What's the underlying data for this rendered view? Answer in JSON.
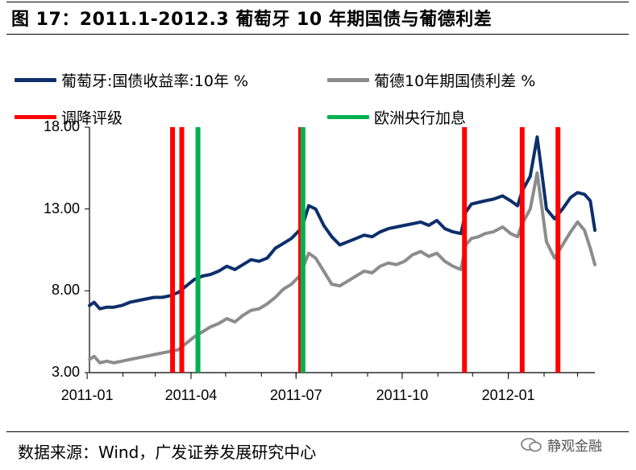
{
  "title": "图 17：2011.1-2012.3 葡萄牙 10 年期国债与葡德利差",
  "source": "数据来源：Wind，广发证券发展研究中心",
  "watermark": "静观金融",
  "colors": {
    "yield": "#0d2f6b",
    "spread": "#8c8c8c",
    "downgrade": "#ff0000",
    "ecb": "#00b050"
  },
  "chart_data": {
    "type": "line",
    "ylim": [
      3,
      18
    ],
    "yticks": [
      "3.00",
      "8.00",
      "13.00",
      "18.00"
    ],
    "xticks": [
      "2011-01",
      "2011-04",
      "2011-07",
      "2011-10",
      "2012-01"
    ],
    "x_range": [
      "2011-01-03",
      "2012-03-16"
    ],
    "series": [
      {
        "name": "葡萄牙:国债收益率:10年 %",
        "x": [
          "2011-01-03",
          "2011-01-07",
          "2011-01-12",
          "2011-01-18",
          "2011-01-24",
          "2011-01-31",
          "2011-02-07",
          "2011-02-14",
          "2011-02-21",
          "2011-02-28",
          "2011-03-07",
          "2011-03-14",
          "2011-03-21",
          "2011-03-28",
          "2011-04-04",
          "2011-04-11",
          "2011-04-18",
          "2011-04-25",
          "2011-05-02",
          "2011-05-09",
          "2011-05-16",
          "2011-05-23",
          "2011-05-30",
          "2011-06-06",
          "2011-06-13",
          "2011-06-20",
          "2011-06-27",
          "2011-07-04",
          "2011-07-08",
          "2011-07-12",
          "2011-07-18",
          "2011-07-25",
          "2011-08-01",
          "2011-08-08",
          "2011-08-15",
          "2011-08-22",
          "2011-08-29",
          "2011-09-05",
          "2011-09-12",
          "2011-09-19",
          "2011-09-26",
          "2011-10-03",
          "2011-10-10",
          "2011-10-17",
          "2011-10-24",
          "2011-10-31",
          "2011-11-07",
          "2011-11-14",
          "2011-11-21",
          "2011-11-25",
          "2011-11-30",
          "2011-12-06",
          "2011-12-12",
          "2011-12-19",
          "2011-12-27",
          "2012-01-03",
          "2012-01-09",
          "2012-01-13",
          "2012-01-20",
          "2012-01-26",
          "2012-01-30",
          "2012-02-03",
          "2012-02-10",
          "2012-02-17",
          "2012-02-24",
          "2012-03-01",
          "2012-03-07",
          "2012-03-12",
          "2012-03-16"
        ],
        "values": [
          7.1,
          7.3,
          6.9,
          7.0,
          7.0,
          7.1,
          7.3,
          7.4,
          7.5,
          7.6,
          7.6,
          7.7,
          7.9,
          8.3,
          8.7,
          8.9,
          9.0,
          9.2,
          9.5,
          9.3,
          9.6,
          9.9,
          9.8,
          10.0,
          10.6,
          10.9,
          11.2,
          11.7,
          12.3,
          13.2,
          13.0,
          12.0,
          11.3,
          10.8,
          11.0,
          11.2,
          11.4,
          11.3,
          11.6,
          11.8,
          11.9,
          12.0,
          12.1,
          12.2,
          12.0,
          12.3,
          11.8,
          11.6,
          11.5,
          12.8,
          13.3,
          13.4,
          13.5,
          13.6,
          13.8,
          13.5,
          13.2,
          14.1,
          15.0,
          17.4,
          15.2,
          13.0,
          12.4,
          13.0,
          13.7,
          14.0,
          13.9,
          13.5,
          11.7
        ]
      },
      {
        "name": "葡德10年期国债利差 %",
        "x": [
          "2011-01-03",
          "2011-01-07",
          "2011-01-12",
          "2011-01-18",
          "2011-01-24",
          "2011-01-31",
          "2011-02-07",
          "2011-02-14",
          "2011-02-21",
          "2011-02-28",
          "2011-03-07",
          "2011-03-14",
          "2011-03-21",
          "2011-03-28",
          "2011-04-04",
          "2011-04-11",
          "2011-04-18",
          "2011-04-25",
          "2011-05-02",
          "2011-05-09",
          "2011-05-16",
          "2011-05-23",
          "2011-05-30",
          "2011-06-06",
          "2011-06-13",
          "2011-06-20",
          "2011-06-27",
          "2011-07-04",
          "2011-07-08",
          "2011-07-12",
          "2011-07-18",
          "2011-07-25",
          "2011-08-01",
          "2011-08-08",
          "2011-08-15",
          "2011-08-22",
          "2011-08-29",
          "2011-09-05",
          "2011-09-12",
          "2011-09-19",
          "2011-09-26",
          "2011-10-03",
          "2011-10-10",
          "2011-10-17",
          "2011-10-24",
          "2011-10-31",
          "2011-11-07",
          "2011-11-14",
          "2011-11-21",
          "2011-11-25",
          "2011-11-30",
          "2011-12-06",
          "2011-12-12",
          "2011-12-19",
          "2011-12-27",
          "2012-01-03",
          "2012-01-09",
          "2012-01-13",
          "2012-01-20",
          "2012-01-26",
          "2012-01-30",
          "2012-02-03",
          "2012-02-10",
          "2012-02-17",
          "2012-02-24",
          "2012-03-01",
          "2012-03-07",
          "2012-03-12",
          "2012-03-16"
        ],
        "values": [
          3.8,
          4.0,
          3.6,
          3.7,
          3.6,
          3.7,
          3.8,
          3.9,
          4.0,
          4.1,
          4.2,
          4.3,
          4.4,
          4.8,
          5.2,
          5.5,
          5.8,
          6.0,
          6.3,
          6.1,
          6.5,
          6.8,
          6.9,
          7.2,
          7.6,
          8.1,
          8.4,
          8.9,
          9.6,
          10.3,
          10.0,
          9.2,
          8.4,
          8.3,
          8.6,
          8.9,
          9.2,
          9.1,
          9.5,
          9.7,
          9.6,
          9.8,
          10.2,
          10.4,
          10.1,
          10.3,
          9.8,
          9.5,
          9.3,
          10.8,
          11.2,
          11.3,
          11.5,
          11.6,
          11.9,
          11.5,
          11.3,
          12.1,
          13.0,
          15.2,
          13.1,
          11.0,
          10.0,
          10.8,
          11.6,
          12.2,
          11.7,
          10.6,
          9.6
        ]
      }
    ],
    "events": [
      {
        "name": "调降评级",
        "dates": [
          "2011-03-16",
          "2011-03-24",
          "2011-07-05",
          "2011-11-24",
          "2012-01-13",
          "2012-02-13"
        ]
      },
      {
        "name": "欧洲央行加息",
        "dates": [
          "2011-04-07",
          "2011-07-07"
        ]
      }
    ]
  }
}
